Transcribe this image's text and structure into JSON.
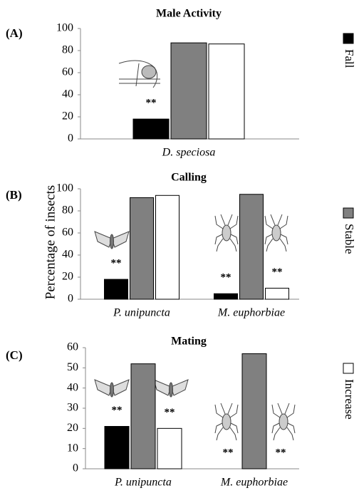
{
  "chart_data": [
    {
      "type": "bar",
      "title": "Male Activity",
      "panel_label": "(A)",
      "categories": [
        "D. speciosa"
      ],
      "series": [
        {
          "values": [
            18
          ]
        },
        {
          "values": [
            87
          ]
        },
        {
          "values": [
            86
          ]
        }
      ],
      "ylim": [
        0,
        100
      ],
      "yticks": [
        0,
        20,
        40,
        60,
        80,
        100
      ],
      "annotations": [
        {
          "text": "**",
          "series": 0,
          "category": 0
        }
      ]
    },
    {
      "type": "bar",
      "title": "Calling",
      "panel_label": "(B)",
      "categories": [
        "P. unipuncta",
        "M. euphorbiae"
      ],
      "series": [
        {
          "values": [
            18,
            5
          ]
        },
        {
          "values": [
            92,
            95
          ]
        },
        {
          "values": [
            94,
            10
          ]
        }
      ],
      "ylim": [
        0,
        100
      ],
      "yticks": [
        0,
        20,
        40,
        60,
        80,
        100
      ],
      "annotations": [
        {
          "text": "**",
          "series": 0,
          "category": 0
        },
        {
          "text": "**",
          "series": 0,
          "category": 1
        },
        {
          "text": "**",
          "series": 2,
          "category": 1
        }
      ]
    },
    {
      "type": "bar",
      "title": "Mating",
      "panel_label": "(C)",
      "categories": [
        "P. unipuncta",
        "M. euphorbiae"
      ],
      "series": [
        {
          "values": [
            21,
            0
          ]
        },
        {
          "values": [
            52,
            57
          ]
        },
        {
          "values": [
            20,
            0
          ]
        }
      ],
      "ylim": [
        0,
        60
      ],
      "yticks": [
        0,
        10,
        20,
        30,
        40,
        50,
        60
      ],
      "annotations": [
        {
          "text": "**",
          "series": 0,
          "category": 0
        },
        {
          "text": "**",
          "series": 2,
          "category": 0
        },
        {
          "text": "**",
          "series": 0,
          "category": 1
        },
        {
          "text": "**",
          "series": 2,
          "category": 1
        }
      ]
    }
  ],
  "y_label": "Percentage of insects",
  "legend": [
    {
      "name": "Fall",
      "color": "#000000"
    },
    {
      "name": "Stable",
      "color": "#808080"
    },
    {
      "name": "Increase",
      "color": "#ffffff"
    }
  ]
}
